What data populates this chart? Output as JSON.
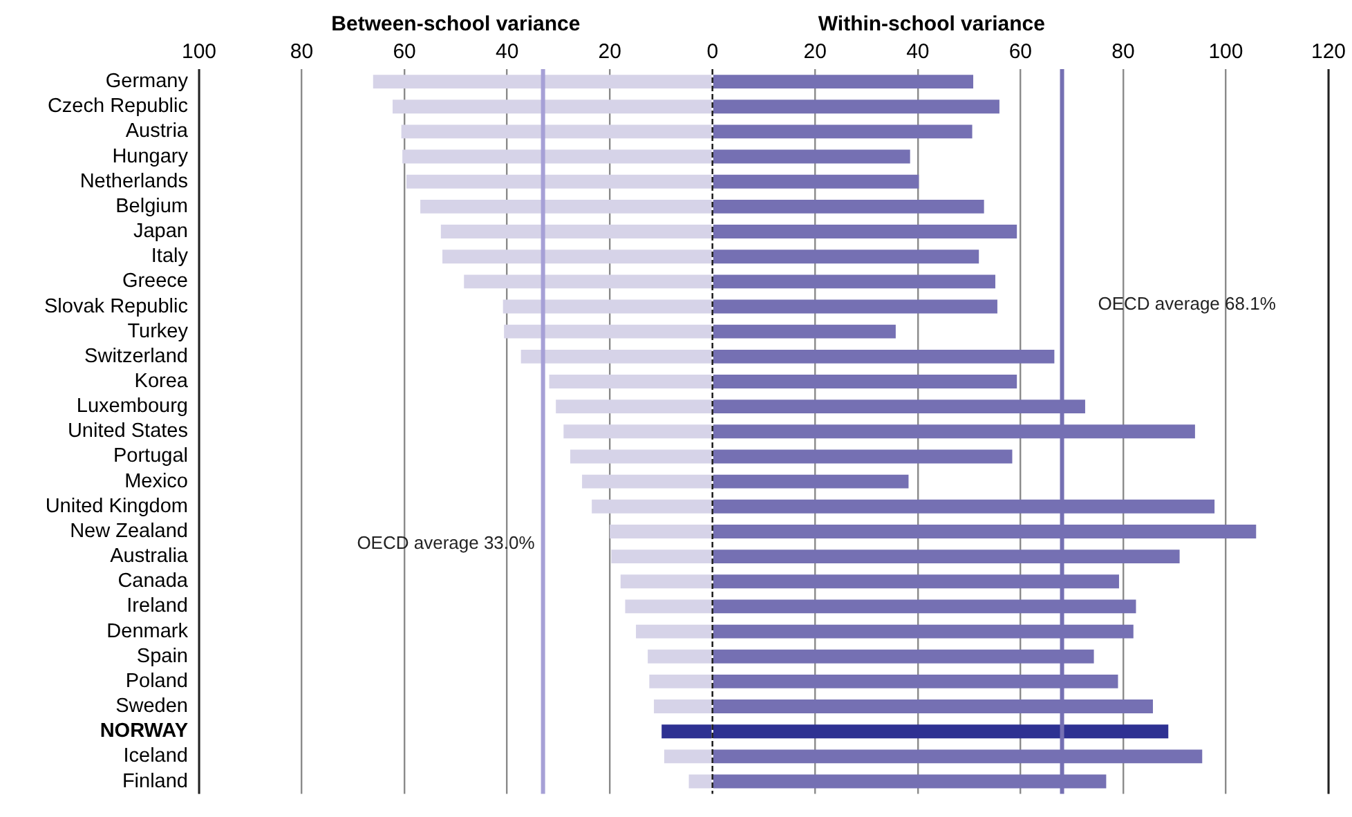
{
  "chart_data": {
    "type": "bar",
    "orientation": "horizontal",
    "stacked": true,
    "categories": [
      "Germany",
      "Czech Republic",
      "Austria",
      "Hungary",
      "Netherlands",
      "Belgium",
      "Japan",
      "Italy",
      "Greece",
      "Slovak Republic",
      "Turkey",
      "Switzerland",
      "Korea",
      "Luxembourg",
      "United States",
      "Portugal",
      "Mexico",
      "United Kingdom",
      "New Zealand",
      "Australia",
      "Canada",
      "Ireland",
      "Denmark",
      "Spain",
      "Poland",
      "Sweden",
      "NORWAY",
      "Iceland",
      "Finland"
    ],
    "series": [
      {
        "name": "Between-school variance",
        "color": "#d6d3e8",
        "colors": [
          "#d6d3e8",
          "#d6d3e8",
          "#d6d3e8",
          "#d6d3e8",
          "#d6d3e8",
          "#d6d3e8",
          "#d6d3e8",
          "#d6d3e8",
          "#d6d3e8",
          "#d6d3e8",
          "#d6d3e8",
          "#d6d3e8",
          "#d6d3e8",
          "#d6d3e8",
          "#d6d3e8",
          "#d6d3e8",
          "#d6d3e8",
          "#d6d3e8",
          "#d6d3e8",
          "#d6d3e8",
          "#d6d3e8",
          "#d6d3e8",
          "#d6d3e8",
          "#d6d3e8",
          "#d6d3e8",
          "#d6d3e8",
          "#2e3192",
          "#d6d3e8",
          "#d6d3e8"
        ],
        "values": [
          -66.1,
          -62.3,
          -60.6,
          -60.4,
          -59.6,
          -56.9,
          -52.9,
          -52.6,
          -48.4,
          -40.8,
          -40.6,
          -37.3,
          -31.8,
          -30.5,
          -29.0,
          -27.7,
          -25.4,
          -23.5,
          -20.0,
          -19.7,
          -17.9,
          -17.0,
          -14.9,
          -12.6,
          -12.3,
          -11.4,
          -9.9,
          -9.4,
          -4.6
        ]
      },
      {
        "name": "Within-school variance",
        "color": "#7570b3",
        "colors": [
          "#7570b3",
          "#7570b3",
          "#7570b3",
          "#7570b3",
          "#7570b3",
          "#7570b3",
          "#7570b3",
          "#7570b3",
          "#7570b3",
          "#7570b3",
          "#7570b3",
          "#7570b3",
          "#7570b3",
          "#7570b3",
          "#7570b3",
          "#7570b3",
          "#7570b3",
          "#7570b3",
          "#7570b3",
          "#7570b3",
          "#7570b3",
          "#7570b3",
          "#7570b3",
          "#7570b3",
          "#7570b3",
          "#7570b3",
          "#2e3192",
          "#7570b3",
          "#7570b3"
        ],
        "values": [
          50.8,
          55.9,
          50.6,
          38.5,
          40.2,
          52.9,
          59.3,
          51.9,
          55.1,
          55.5,
          35.7,
          66.6,
          59.3,
          72.6,
          94.0,
          58.4,
          38.2,
          97.8,
          105.9,
          91.0,
          79.2,
          82.5,
          82.0,
          74.3,
          79.0,
          85.8,
          88.8,
          95.4,
          76.7
        ]
      }
    ],
    "xlim": [
      -100,
      120
    ],
    "xticks": [
      {
        "value": -100,
        "label": "100"
      },
      {
        "value": -80,
        "label": "80"
      },
      {
        "value": -60,
        "label": "60"
      },
      {
        "value": -40,
        "label": "40"
      },
      {
        "value": -20,
        "label": "20"
      },
      0,
      20,
      40,
      60,
      80,
      100,
      120
    ],
    "grid": "x",
    "ref_lines": [
      {
        "axis": "x",
        "value": 0,
        "color": "#222222",
        "line_style": "dashed"
      },
      {
        "axis": "x",
        "value": -33.0,
        "label": "OECD average 33.0%",
        "color": "#a6a0d6"
      },
      {
        "axis": "x",
        "value": 68.1,
        "label": "OECD average 68.1%",
        "color": "#7570b3"
      }
    ],
    "legend": false
  }
}
